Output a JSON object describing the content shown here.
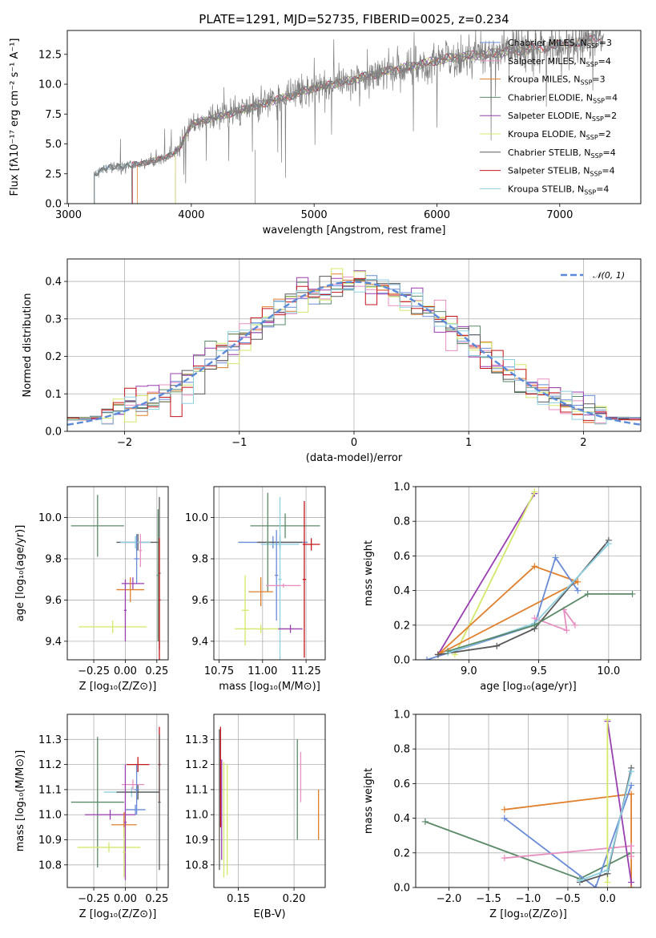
{
  "colors": {
    "chabrier_miles": "#6a8bd8",
    "salpeter_miles": "#e88fc1",
    "kroupa_miles": "#e07f2c",
    "chabrier_elodie": "#5b8a68",
    "salpeter_elodie": "#9a3fb0",
    "kroupa_elodie": "#d3e86b",
    "chabrier_stelib": "#5a5a5a",
    "salpeter_stelib": "#c4161c",
    "kroupa_stelib": "#8ecfe0",
    "spectrum": "#808080",
    "normal": "#5b8ad8"
  },
  "chart_data": [
    {
      "type": "line",
      "id": "spectrum",
      "title": "PLATE=1291, MJD=52735, FIBERID=0025, z=0.234",
      "xlabel": "wavelength [Angstrom, rest frame]",
      "ylabel_html": "Flux [fλ10⁻¹⁷ erg cm⁻² s⁻¹ A⁻¹]",
      "xlim": [
        2990,
        7660
      ],
      "ylim": [
        0,
        14.5
      ],
      "xticks": [
        3000,
        4000,
        5000,
        6000,
        7000
      ],
      "yticks": [
        0.0,
        2.5,
        5.0,
        7.5,
        10.0,
        12.5
      ],
      "legend_position": "right",
      "legend": [
        {
          "text": "Chabrier MILES, N",
          "sub": "SSP",
          "tail": "=3",
          "color": "#6a8bd8"
        },
        {
          "text": "Salpeter MILES, N",
          "sub": "SSP",
          "tail": "=4",
          "color": "#e88fc1"
        },
        {
          "text": "Kroupa MILES, N",
          "sub": "SSP",
          "tail": "=3",
          "color": "#e07f2c"
        },
        {
          "text": "Chabrier ELODIE, N",
          "sub": "SSP",
          "tail": "=4",
          "color": "#5b8a68"
        },
        {
          "text": "Salpeter ELODIE, N",
          "sub": "SSP",
          "tail": "=2",
          "color": "#9a3fb0"
        },
        {
          "text": "Kroupa ELODIE, N",
          "sub": "SSP",
          "tail": "=2",
          "color": "#d3e86b"
        },
        {
          "text": "Chabrier STELIB, N",
          "sub": "SSP",
          "tail": "=4",
          "color": "#5a5a5a"
        },
        {
          "text": "Salpeter STELIB, N",
          "sub": "SSP",
          "tail": "=4",
          "color": "#c4161c"
        },
        {
          "text": "Kroupa STELIB, N",
          "sub": "SSP",
          "tail": "=4",
          "color": "#8ecfe0"
        }
      ],
      "continuum": [
        [
          3210,
          2.4
        ],
        [
          3300,
          3.0
        ],
        [
          3500,
          3.2
        ],
        [
          3600,
          3.4
        ],
        [
          3700,
          3.6
        ],
        [
          3800,
          3.9
        ],
        [
          3900,
          4.6
        ],
        [
          4000,
          6.6
        ],
        [
          4100,
          7.0
        ],
        [
          4200,
          7.2
        ],
        [
          4400,
          7.8
        ],
        [
          4600,
          8.4
        ],
        [
          4800,
          9.0
        ],
        [
          5000,
          9.7
        ],
        [
          5200,
          10.1
        ],
        [
          5400,
          10.6
        ],
        [
          5600,
          11.1
        ],
        [
          5800,
          11.5
        ],
        [
          6000,
          12.0
        ],
        [
          6200,
          12.3
        ],
        [
          6400,
          12.5
        ],
        [
          6600,
          12.8
        ],
        [
          6800,
          13.0
        ],
        [
          7000,
          13.3
        ],
        [
          7200,
          13.6
        ],
        [
          7350,
          13.8
        ]
      ]
    },
    {
      "type": "line",
      "id": "residuals",
      "xlabel": "(data-model)/error",
      "ylabel": "Normed distribution",
      "xlim": [
        -2.5,
        2.5
      ],
      "ylim": [
        0,
        0.46
      ],
      "xticks": [
        -2,
        -1,
        0,
        1,
        2
      ],
      "yticks": [
        0.0,
        0.1,
        0.2,
        0.3,
        0.4
      ],
      "grid": true,
      "legend_position": "top-right",
      "legend": [
        {
          "text": "𝒩(0, 1)",
          "color": "#5b8ad8"
        }
      ],
      "bin_width": 0.1
    },
    {
      "type": "scatter",
      "id": "age-vs-z",
      "xlabel": "Z [log₁₀(Z/Z⊙)]",
      "ylabel": "age  [log₁₀(age/yr)]",
      "xlim": [
        -0.46,
        0.34
      ],
      "ylim": [
        9.31,
        10.15
      ],
      "xticks": [
        -0.25,
        0.0,
        0.25
      ],
      "yticks": [
        9.4,
        9.6,
        9.8,
        10.0
      ],
      "grid": true,
      "points": [
        {
          "x": -0.22,
          "y": 9.96,
          "xerr": 0.21,
          "yerr": 0.15,
          "color": "#5b8a68"
        },
        {
          "x": 0.1,
          "y": 9.88,
          "xerr": 0.17,
          "yerr": 0.04,
          "color": "#5a5a5a"
        },
        {
          "x": 0.08,
          "y": 9.88,
          "xerr": 0.12,
          "yerr": 0.03,
          "color": "#8ecfe0"
        },
        {
          "x": 0.09,
          "y": 9.8,
          "xerr": 0.02,
          "yerr": 0.12,
          "color": "#6a8bd8"
        },
        {
          "x": 0.12,
          "y": 9.84,
          "xerr": 0.01,
          "yerr": 0.08,
          "color": "#e88fc1"
        },
        {
          "x": 0.06,
          "y": 9.68,
          "xerr": 0.09,
          "yerr": 0.03,
          "color": "#9a3fb0"
        },
        {
          "x": 0.04,
          "y": 9.65,
          "xerr": 0.11,
          "yerr": 0.06,
          "color": "#e07f2c"
        },
        {
          "x": -0.1,
          "y": 9.47,
          "xerr": 0.27,
          "yerr": 0.03,
          "color": "#d3e86b"
        },
        {
          "x": 0.0,
          "y": 9.55,
          "xerr": 0.01,
          "yerr": 0.15,
          "color": "#9a3fb0"
        },
        {
          "x": 0.27,
          "y": 9.73,
          "xerr": 0.01,
          "yerr": 0.37,
          "color": "#5a5a5a"
        },
        {
          "x": 0.27,
          "y": 9.6,
          "xerr": 0.01,
          "yerr": 0.3,
          "color": "#c4161c"
        },
        {
          "x": 0.26,
          "y": 9.72,
          "xerr": 0.01,
          "yerr": 0.32,
          "color": "#5b8a68"
        }
      ]
    },
    {
      "type": "scatter",
      "id": "age-vs-mass",
      "xlabel": "mass [log₁₀(M/M⊙)]",
      "xlim": [
        10.72,
        11.36
      ],
      "ylim": [
        9.31,
        10.15
      ],
      "xticks": [
        10.75,
        11.0,
        11.25
      ],
      "yticks": [
        9.4,
        9.6,
        9.8,
        10.0
      ],
      "grid": true,
      "points": [
        {
          "x": 11.13,
          "y": 9.96,
          "xerr": 0.2,
          "yerr": 0.06,
          "color": "#5b8a68"
        },
        {
          "x": 11.06,
          "y": 9.88,
          "xerr": 0.2,
          "yerr": 0.03,
          "color": "#6a8bd8"
        },
        {
          "x": 11.1,
          "y": 9.88,
          "xerr": 0.13,
          "yerr": 0.03,
          "color": "#5a5a5a"
        },
        {
          "x": 11.1,
          "y": 9.87,
          "xerr": 0.11,
          "yerr": 0.03,
          "color": "#8ecfe0"
        },
        {
          "x": 11.28,
          "y": 9.87,
          "xerr": 0.05,
          "yerr": 0.03,
          "color": "#c4161c"
        },
        {
          "x": 11.03,
          "y": 9.88,
          "xerr": 0.01,
          "yerr": 0.24,
          "color": "#5b8a68"
        },
        {
          "x": 11.1,
          "y": 9.7,
          "xerr": 0.01,
          "yerr": 0.4,
          "color": "#8ecfe0"
        },
        {
          "x": 11.08,
          "y": 9.72,
          "xerr": 0.01,
          "yerr": 0.22,
          "color": "#6a8bd8"
        },
        {
          "x": 11.12,
          "y": 9.67,
          "xerr": 0.1,
          "yerr": 0.01,
          "color": "#e88fc1"
        },
        {
          "x": 10.99,
          "y": 9.64,
          "xerr": 0.07,
          "yerr": 0.07,
          "color": "#e07f2c"
        },
        {
          "x": 10.9,
          "y": 9.55,
          "xerr": 0.02,
          "yerr": 0.17,
          "color": "#d3e86b"
        },
        {
          "x": 10.99,
          "y": 9.46,
          "xerr": 0.15,
          "yerr": 0.02,
          "color": "#d3e86b"
        },
        {
          "x": 11.16,
          "y": 9.46,
          "xerr": 0.07,
          "yerr": 0.02,
          "color": "#9a3fb0"
        },
        {
          "x": 11.24,
          "y": 9.7,
          "xerr": 0.01,
          "yerr": 0.38,
          "color": "#c4161c"
        }
      ]
    },
    {
      "type": "line",
      "id": "weight-vs-age",
      "xlabel": "age  [log₁₀(age/yr)]",
      "ylabel": "mass weight",
      "xlim": [
        8.62,
        10.23
      ],
      "ylim": [
        0.0,
        1.0
      ],
      "xticks": [
        9.0,
        9.5,
        10.0
      ],
      "yticks": [
        0.0,
        0.2,
        0.4,
        0.6,
        0.8,
        1.0
      ],
      "grid": true,
      "series": [
        {
          "color": "#9a3fb0",
          "points": [
            [
              8.78,
              0.03
            ],
            [
              9.47,
              0.96
            ]
          ]
        },
        {
          "color": "#d3e86b",
          "points": [
            [
              8.9,
              0.03
            ],
            [
              9.47,
              0.97
            ]
          ]
        },
        {
          "color": "#e07f2c",
          "points": [
            [
              8.78,
              0.03
            ],
            [
              9.47,
              0.54
            ],
            [
              9.78,
              0.45
            ],
            [
              8.78,
              0.03
            ]
          ]
        },
        {
          "color": "#6a8bd8",
          "points": [
            [
              8.7,
              0.0
            ],
            [
              9.47,
              0.2
            ],
            [
              9.62,
              0.59
            ],
            [
              9.78,
              0.4
            ]
          ]
        },
        {
          "color": "#e88fc1",
          "points": [
            [
              9.47,
              0.24
            ],
            [
              9.7,
              0.17
            ],
            [
              9.68,
              0.29
            ],
            [
              9.76,
              0.2
            ]
          ]
        },
        {
          "color": "#5a5a5a",
          "points": [
            [
              8.78,
              0.03
            ],
            [
              9.2,
              0.08
            ],
            [
              9.47,
              0.18
            ],
            [
              10.0,
              0.69
            ]
          ]
        },
        {
          "color": "#8ecfe0",
          "points": [
            [
              8.85,
              0.04
            ],
            [
              9.47,
              0.21
            ],
            [
              10.0,
              0.67
            ]
          ]
        },
        {
          "color": "#5b8a68",
          "points": [
            [
              8.85,
              0.05
            ],
            [
              9.47,
              0.2
            ],
            [
              9.85,
              0.38
            ],
            [
              10.17,
              0.38
            ]
          ]
        }
      ]
    },
    {
      "type": "scatter",
      "id": "mass-vs-z",
      "xlabel": "Z [log₁₀(Z/Z⊙)]",
      "ylabel": "mass [log₁₀(M/M⊙)]",
      "xlim": [
        -0.46,
        0.34
      ],
      "ylim": [
        10.71,
        11.4
      ],
      "xticks": [
        -0.25,
        0.0,
        0.25
      ],
      "yticks": [
        10.8,
        10.9,
        11.0,
        11.1,
        11.2,
        11.3
      ],
      "grid": true,
      "points": [
        {
          "x": -0.22,
          "y": 11.05,
          "xerr": 0.21,
          "yerr": 0.26,
          "color": "#5b8a68"
        },
        {
          "x": 0.05,
          "y": 11.09,
          "xerr": 0.22,
          "yerr": 0.02,
          "color": "#8ecfe0"
        },
        {
          "x": 0.1,
          "y": 11.09,
          "xerr": 0.17,
          "yerr": 0.03,
          "color": "#5a5a5a"
        },
        {
          "x": 0.1,
          "y": 11.2,
          "xerr": 0.09,
          "yerr": 0.03,
          "color": "#c4161c"
        },
        {
          "x": 0.27,
          "y": 11.2,
          "xerr": 0.01,
          "yerr": 0.15,
          "color": "#c4161c"
        },
        {
          "x": 0.27,
          "y": 11.05,
          "xerr": 0.01,
          "yerr": 0.27,
          "color": "#5a5a5a"
        },
        {
          "x": 0.06,
          "y": 11.12,
          "xerr": 0.09,
          "yerr": 0.02,
          "color": "#e88fc1"
        },
        {
          "x": 0.09,
          "y": 11.1,
          "xerr": 0.02,
          "yerr": 0.1,
          "color": "#6a8bd8"
        },
        {
          "x": 0.08,
          "y": 11.02,
          "xerr": 0.08,
          "yerr": 0.02,
          "color": "#6a8bd8"
        },
        {
          "x": -0.12,
          "y": 11.0,
          "xerr": 0.2,
          "yerr": 0.02,
          "color": "#9a3fb0"
        },
        {
          "x": -0.01,
          "y": 10.96,
          "xerr": 0.1,
          "yerr": 0.05,
          "color": "#e07f2c"
        },
        {
          "x": -0.13,
          "y": 10.87,
          "xerr": 0.25,
          "yerr": 0.02,
          "color": "#d3e86b"
        },
        {
          "x": 0.0,
          "y": 10.97,
          "xerr": 0.01,
          "yerr": 0.23,
          "color": "#9a3fb0"
        },
        {
          "x": -0.01,
          "y": 10.85,
          "xerr": 0.01,
          "yerr": 0.1,
          "color": "#d3e86b"
        }
      ]
    },
    {
      "type": "scatter",
      "id": "mass-vs-ebv",
      "xlabel": "E(B-V)",
      "xlim": [
        0.128,
        0.228
      ],
      "ylim": [
        10.71,
        11.4
      ],
      "xticks": [
        0.15,
        0.2
      ],
      "yticks": [
        10.8,
        10.9,
        11.0,
        11.1,
        11.2,
        11.3
      ],
      "grid": true,
      "points": [
        {
          "x": 0.133,
          "y": 11.06,
          "xerr": 0.0,
          "yerr": 0.28,
          "color": "#5a5a5a"
        },
        {
          "x": 0.135,
          "y": 11.02,
          "xerr": 0.0,
          "yerr": 0.2,
          "color": "#9a3fb0"
        },
        {
          "x": 0.137,
          "y": 10.98,
          "xerr": 0.0,
          "yerr": 0.23,
          "color": "#d3e86b"
        },
        {
          "x": 0.134,
          "y": 11.15,
          "xerr": 0.0,
          "yerr": 0.2,
          "color": "#c4161c"
        },
        {
          "x": 0.14,
          "y": 10.98,
          "xerr": 0.0,
          "yerr": 0.22,
          "color": "#d3e86b"
        },
        {
          "x": 0.203,
          "y": 11.1,
          "xerr": 0.0,
          "yerr": 0.2,
          "color": "#5b8a68"
        },
        {
          "x": 0.206,
          "y": 11.15,
          "xerr": 0.0,
          "yerr": 0.1,
          "color": "#e88fc1"
        },
        {
          "x": 0.222,
          "y": 11.0,
          "xerr": 0.0,
          "yerr": 0.1,
          "color": "#e07f2c"
        }
      ]
    },
    {
      "type": "line",
      "id": "weight-vs-z",
      "xlabel": "Z [log₁₀(Z/Z⊙)]",
      "ylabel": "mass weight",
      "xlim": [
        -2.42,
        0.42
      ],
      "ylim": [
        0.0,
        1.0
      ],
      "xticks": [
        -2.0,
        -1.5,
        -1.0,
        -0.5,
        0.0
      ],
      "yticks": [
        0.0,
        0.2,
        0.4,
        0.6,
        0.8,
        1.0
      ],
      "grid": true,
      "series": [
        {
          "color": "#5b8a68",
          "points": [
            [
              -2.3,
              0.38
            ],
            [
              -0.35,
              0.05
            ],
            [
              0.3,
              0.2
            ]
          ]
        },
        {
          "color": "#e07f2c",
          "points": [
            [
              -1.3,
              0.45
            ],
            [
              0.3,
              0.54
            ],
            [
              0.3,
              0.0
            ]
          ]
        },
        {
          "color": "#6a8bd8",
          "points": [
            [
              -1.3,
              0.4
            ],
            [
              -0.15,
              0.0
            ],
            [
              0.3,
              0.59
            ]
          ]
        },
        {
          "color": "#e88fc1",
          "points": [
            [
              -1.3,
              0.17
            ],
            [
              0.3,
              0.24
            ],
            [
              0.3,
              0.18
            ]
          ]
        },
        {
          "color": "#9a3fb0",
          "points": [
            [
              0.0,
              0.96
            ],
            [
              0.3,
              0.03
            ]
          ]
        },
        {
          "color": "#d3e86b",
          "points": [
            [
              0.0,
              0.97
            ],
            [
              0.0,
              0.03
            ]
          ]
        },
        {
          "color": "#5a5a5a",
          "points": [
            [
              -0.35,
              0.03
            ],
            [
              0.0,
              0.08
            ],
            [
              0.3,
              0.69
            ]
          ]
        },
        {
          "color": "#8ecfe0",
          "points": [
            [
              -0.35,
              0.04
            ],
            [
              0.0,
              0.1
            ],
            [
              0.3,
              0.67
            ]
          ]
        }
      ]
    }
  ]
}
